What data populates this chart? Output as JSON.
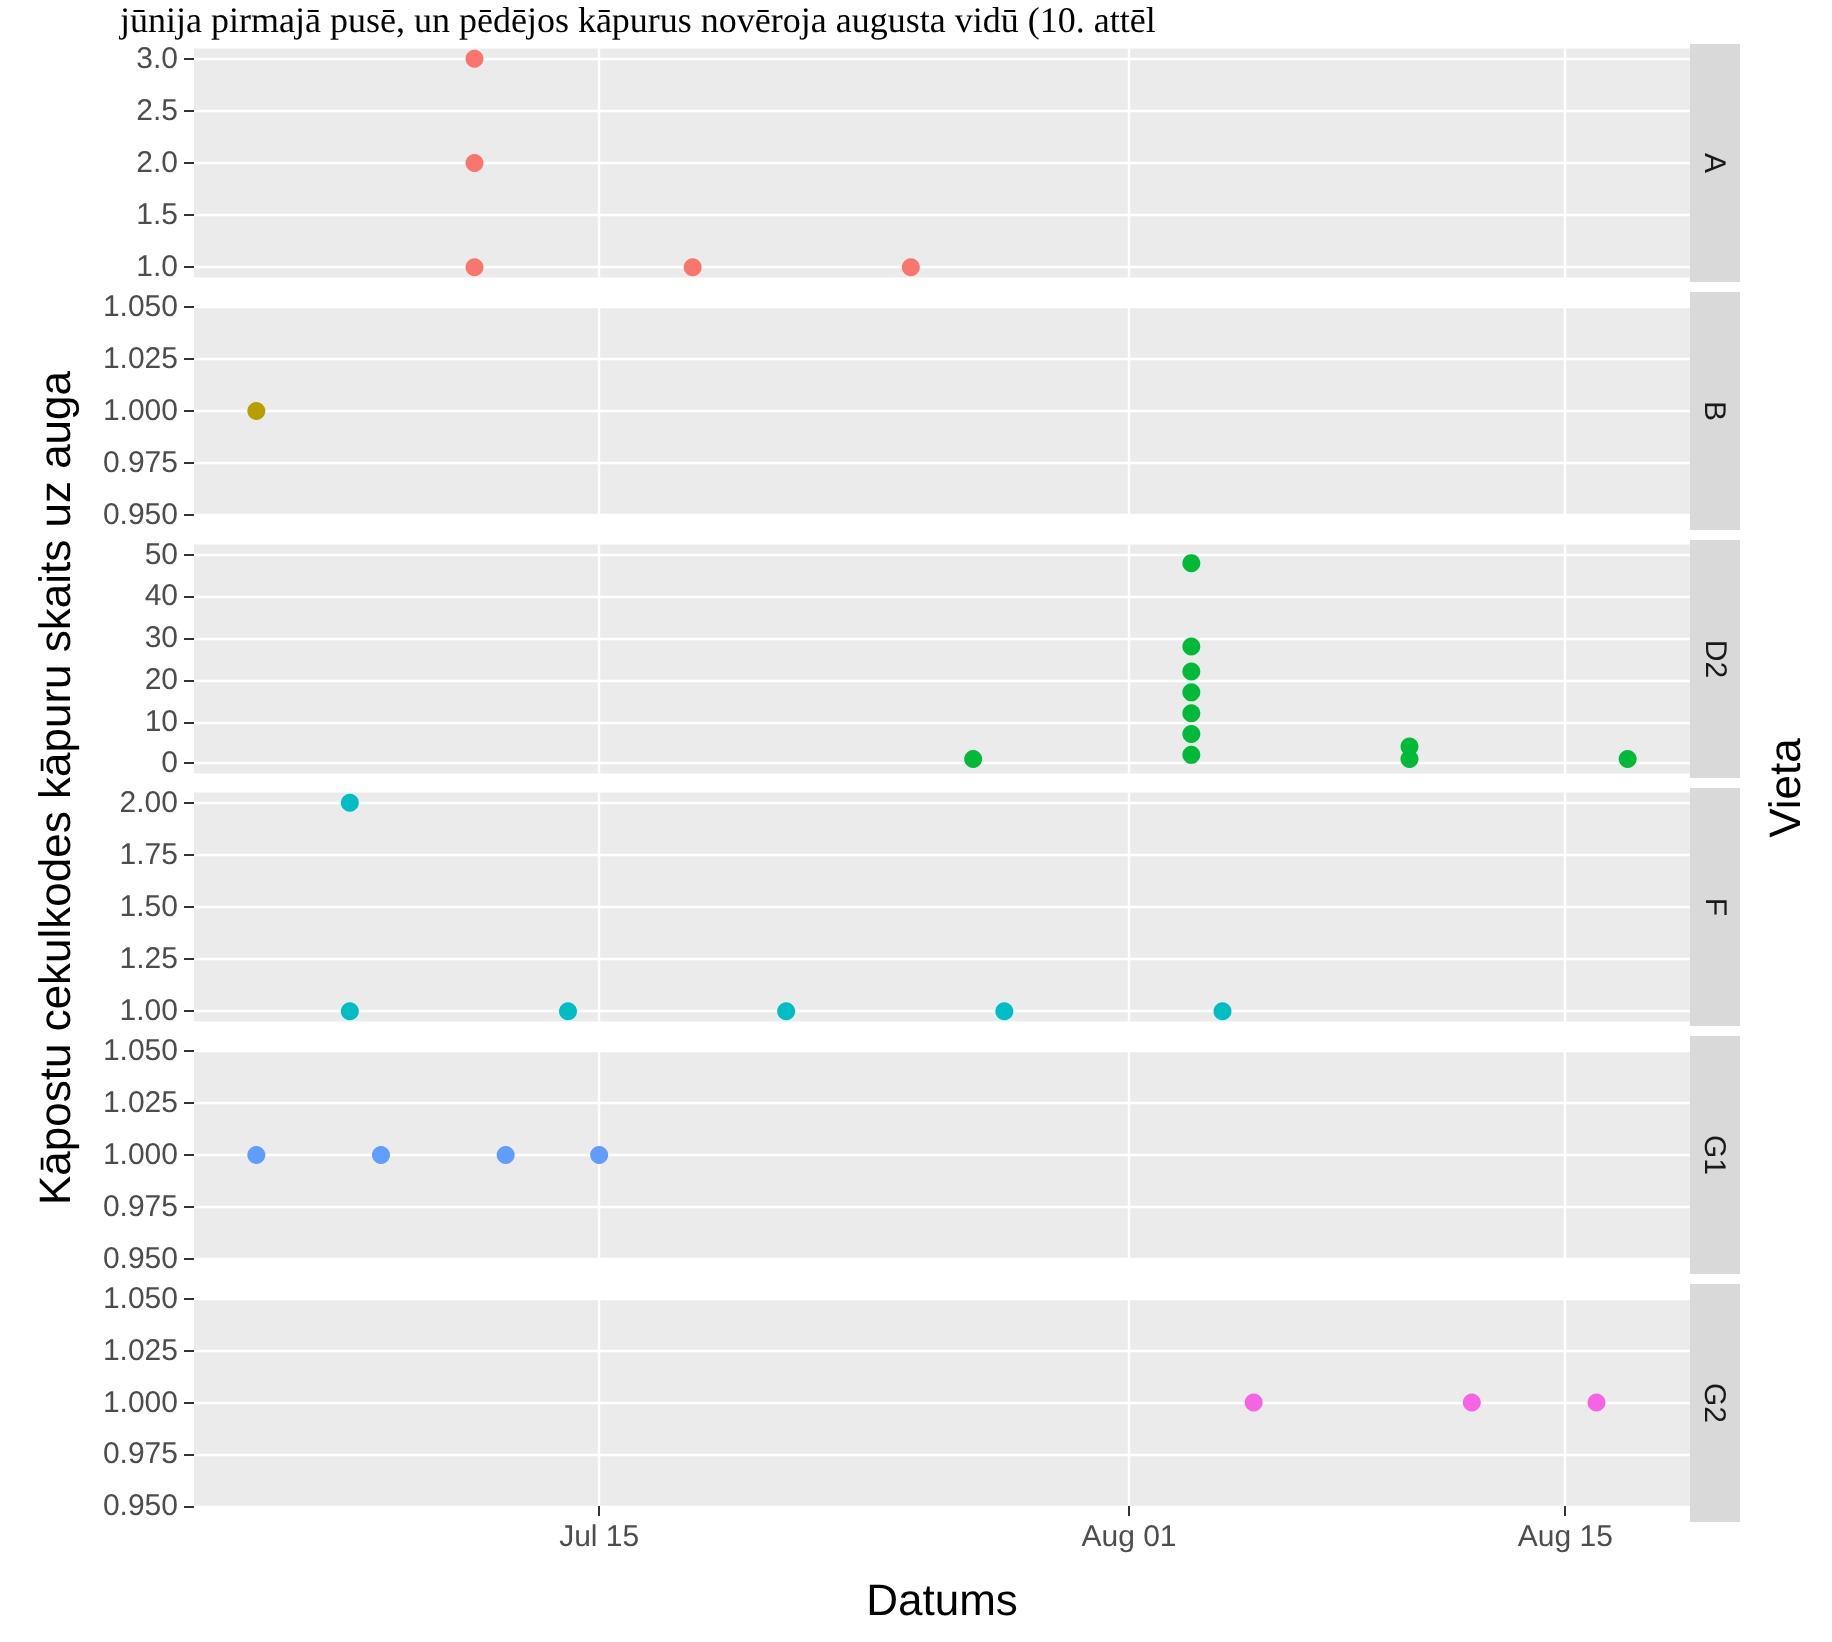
{
  "chart_data": [
    {
      "type": "scatter",
      "ylabel": "Kāpostu cekulkodes kāpuru skaits uz auga",
      "y2label": "Vieta",
      "annotations": [
        "jūnija pirmajā pusē, un pēdējos kāpurus novēroja augusta vidū (10. attēl"
      ],
      "marker": "circle",
      "grid": true,
      "legend": false,
      "tick_labels": "y",
      "xlim": [
        "--07-02",
        "--08-19"
      ],
      "xticks": [
        {
          "value": "--07-15",
          "label": "Jul 15"
        },
        {
          "value": "--08-01",
          "label": "Aug 01"
        },
        {
          "value": "--08-15",
          "label": "Aug 15"
        }
      ],
      "ylim": [
        0.9,
        3.1
      ],
      "yticks": [
        {
          "value": 1,
          "label": "1.0"
        },
        {
          "value": 1.5,
          "label": "1.5"
        },
        {
          "value": 2,
          "label": "2.0"
        },
        {
          "value": 2.5,
          "label": "2.5"
        },
        {
          "value": 3,
          "label": "3.0"
        }
      ],
      "series": [
        {
          "name": "A",
          "color": "#f8766d",
          "x": [
            "--07-11",
            "--07-11",
            "--07-11",
            "--07-18",
            "--07-25"
          ],
          "values": [
            1,
            2,
            3,
            1,
            1
          ]
        }
      ]
    },
    {
      "type": "scatter",
      "marker": "circle",
      "grid": true,
      "legend": false,
      "tick_labels": "y",
      "xlim": [
        "--07-02",
        "--08-19"
      ],
      "xticks": [
        {
          "value": "--07-15",
          "label": "Jul 15"
        },
        {
          "value": "--08-01",
          "label": "Aug 01"
        },
        {
          "value": "--08-15",
          "label": "Aug 15"
        }
      ],
      "ylim": [
        0.95,
        1.05
      ],
      "yticks": [
        {
          "value": 0.95,
          "label": "0.950"
        },
        {
          "value": 0.975,
          "label": "0.975"
        },
        {
          "value": 1,
          "label": "1.000"
        },
        {
          "value": 1.025,
          "label": "1.025"
        },
        {
          "value": 1.05,
          "label": "1.050"
        }
      ],
      "series": [
        {
          "name": "B",
          "color": "#b79f00",
          "x": [
            "--07-04"
          ],
          "values": [
            1
          ]
        }
      ]
    },
    {
      "type": "scatter",
      "marker": "circle",
      "grid": true,
      "legend": false,
      "tick_labels": "y",
      "xlim": [
        "--07-02",
        "--08-19"
      ],
      "xticks": [
        {
          "value": "--07-15",
          "label": "Jul 15"
        },
        {
          "value": "--08-01",
          "label": "Aug 01"
        },
        {
          "value": "--08-15",
          "label": "Aug 15"
        }
      ],
      "ylim": [
        -2.5,
        52.5
      ],
      "yticks": [
        0,
        10,
        20,
        30,
        40,
        50
      ],
      "series": [
        {
          "name": "D2",
          "color": "#00ba38",
          "x": [
            "--07-27",
            "--08-03",
            "--08-03",
            "--08-03",
            "--08-03",
            "--08-03",
            "--08-03",
            "--08-03",
            "--08-10",
            "--08-10",
            "--08-17"
          ],
          "values": [
            1,
            2,
            7,
            12,
            17,
            22,
            28,
            48,
            1,
            4,
            1
          ]
        }
      ]
    },
    {
      "type": "scatter",
      "marker": "circle",
      "grid": true,
      "legend": false,
      "tick_labels": "y",
      "xlim": [
        "--07-02",
        "--08-19"
      ],
      "xticks": [
        {
          "value": "--07-15",
          "label": "Jul 15"
        },
        {
          "value": "--08-01",
          "label": "Aug 01"
        },
        {
          "value": "--08-15",
          "label": "Aug 15"
        }
      ],
      "ylim": [
        0.95,
        2.05
      ],
      "yticks": [
        {
          "value": 1,
          "label": "1.00"
        },
        {
          "value": 1.25,
          "label": "1.25"
        },
        {
          "value": 1.5,
          "label": "1.50"
        },
        {
          "value": 1.75,
          "label": "1.75"
        },
        {
          "value": 2,
          "label": "2.00"
        }
      ],
      "series": [
        {
          "name": "F",
          "color": "#00bfc4",
          "x": [
            "--07-07",
            "--07-07",
            "--07-14",
            "--07-21",
            "--07-28",
            "--08-04"
          ],
          "values": [
            1,
            2,
            1,
            1,
            1,
            1
          ]
        }
      ]
    },
    {
      "type": "scatter",
      "marker": "circle",
      "grid": true,
      "legend": false,
      "tick_labels": "y",
      "xlim": [
        "--07-02",
        "--08-19"
      ],
      "xticks": [
        {
          "value": "--07-15",
          "label": "Jul 15"
        },
        {
          "value": "--08-01",
          "label": "Aug 01"
        },
        {
          "value": "--08-15",
          "label": "Aug 15"
        }
      ],
      "ylim": [
        0.95,
        1.05
      ],
      "yticks": [
        {
          "value": 0.95,
          "label": "0.950"
        },
        {
          "value": 0.975,
          "label": "0.975"
        },
        {
          "value": 1,
          "label": "1.000"
        },
        {
          "value": 1.025,
          "label": "1.025"
        },
        {
          "value": 1.05,
          "label": "1.050"
        }
      ],
      "series": [
        {
          "name": "G1",
          "color": "#619cff",
          "x": [
            "--07-04",
            "--07-08",
            "--07-12",
            "--07-15"
          ],
          "values": [
            1,
            1,
            1,
            1
          ]
        }
      ]
    },
    {
      "type": "scatter",
      "xlabel": "Datums",
      "marker": "circle",
      "grid": true,
      "legend": false,
      "xlim": [
        "--07-02",
        "--08-19"
      ],
      "xticks": [
        {
          "value": "--07-15",
          "label": "Jul 15"
        },
        {
          "value": "--08-01",
          "label": "Aug 01"
        },
        {
          "value": "--08-15",
          "label": "Aug 15"
        }
      ],
      "ylim": [
        0.95,
        1.05
      ],
      "yticks": [
        {
          "value": 0.95,
          "label": "0.950"
        },
        {
          "value": 0.975,
          "label": "0.975"
        },
        {
          "value": 1,
          "label": "1.000"
        },
        {
          "value": 1.025,
          "label": "1.025"
        },
        {
          "value": 1.05,
          "label": "1.050"
        }
      ],
      "series": [
        {
          "name": "G2",
          "color": "#f564e3",
          "x": [
            "--08-05",
            "--08-12",
            "--08-16"
          ],
          "values": [
            1,
            1,
            1
          ]
        }
      ]
    }
  ]
}
